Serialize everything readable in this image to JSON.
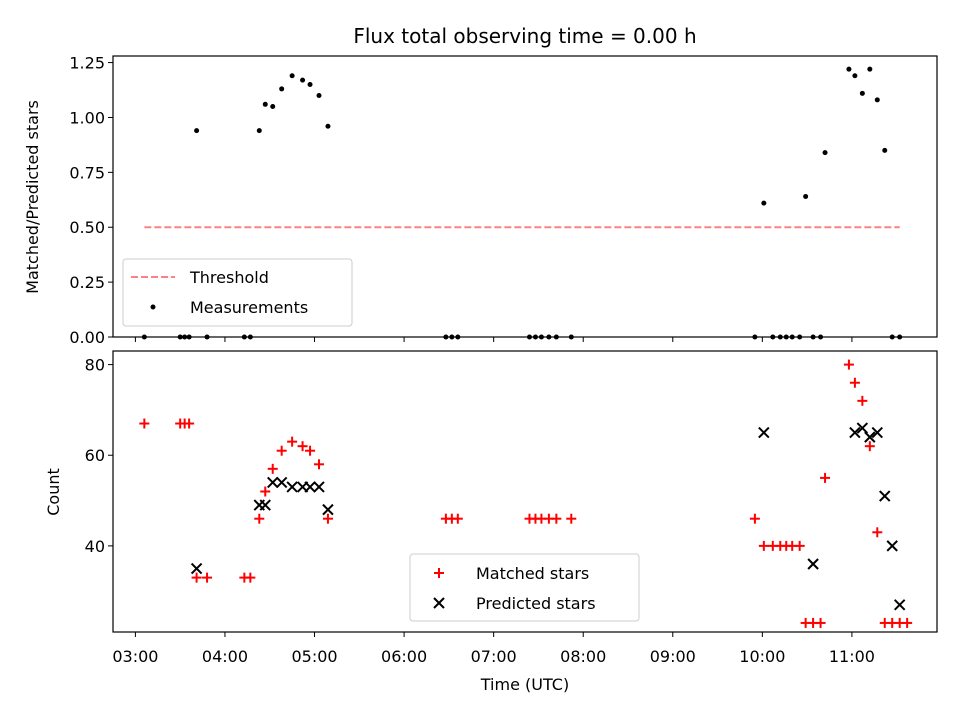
{
  "chart_data": [
    {
      "type": "scatter",
      "title": "Flux total observing time = 0.00 h",
      "xlabel": "",
      "ylabel": "Matched/Predicted stars",
      "xlim": [
        "02:45",
        "11:57"
      ],
      "ylim": [
        0,
        1.28
      ],
      "yticks": [
        "0.00",
        "0.25",
        "0.50",
        "0.75",
        "1.00",
        "1.25"
      ],
      "grid": false,
      "legend_position": "lower-left",
      "series": [
        {
          "name": "Threshold",
          "kind": "dashed-line",
          "color": "#ff8080",
          "x": [
            "03:06",
            "11:32"
          ],
          "y": [
            0.5,
            0.5
          ]
        },
        {
          "name": "Measurements",
          "kind": "scatter",
          "color": "#000000",
          "x": [
            "03:06",
            "03:30",
            "03:33",
            "03:36",
            "03:41",
            "03:48",
            "04:13",
            "04:17",
            "04:23",
            "04:27",
            "04:32",
            "04:38",
            "04:45",
            "04:52",
            "04:57",
            "05:03",
            "05:09",
            "06:28",
            "06:32",
            "06:36",
            "07:24",
            "07:28",
            "07:32",
            "07:37",
            "07:42",
            "07:52",
            "09:55",
            "10:01",
            "10:07",
            "10:12",
            "10:16",
            "10:20",
            "10:25",
            "10:29",
            "10:34",
            "10:39",
            "10:42",
            "10:58",
            "11:02",
            "11:07",
            "11:12",
            "11:17",
            "11:22",
            "11:27",
            "11:32"
          ],
          "y": [
            0,
            0,
            0,
            0,
            0.94,
            0,
            0,
            0,
            0.94,
            1.06,
            1.05,
            1.13,
            1.19,
            1.17,
            1.15,
            1.1,
            0.96,
            0,
            0,
            0,
            0,
            0,
            0,
            0,
            0,
            0,
            0,
            0.61,
            0,
            0,
            0,
            0,
            0,
            0.64,
            0,
            0,
            0.84,
            1.22,
            1.19,
            1.11,
            1.22,
            1.08,
            0.85,
            0,
            0
          ]
        }
      ]
    },
    {
      "type": "scatter",
      "title": "",
      "xlabel": "Time (UTC)",
      "ylabel": "Count",
      "xlim": [
        "02:45",
        "11:57"
      ],
      "ylim": [
        21,
        83
      ],
      "yticks": [
        "40",
        "60",
        "80"
      ],
      "xticks": [
        "03:00",
        "04:00",
        "05:00",
        "06:00",
        "07:00",
        "08:00",
        "09:00",
        "10:00",
        "11:00"
      ],
      "grid": false,
      "legend_position": "bottom-center",
      "series": [
        {
          "name": "Matched stars",
          "kind": "plus",
          "color": "#ff0000",
          "x": [
            "03:06",
            "03:30",
            "03:33",
            "03:36",
            "03:41",
            "03:48",
            "04:13",
            "04:17",
            "04:23",
            "04:27",
            "04:32",
            "04:38",
            "04:45",
            "04:52",
            "04:57",
            "05:03",
            "05:09",
            "06:28",
            "06:32",
            "06:36",
            "07:24",
            "07:28",
            "07:32",
            "07:37",
            "07:42",
            "07:52",
            "09:55",
            "10:01",
            "10:07",
            "10:12",
            "10:16",
            "10:20",
            "10:25",
            "10:29",
            "10:34",
            "10:39",
            "10:42",
            "10:58",
            "11:02",
            "11:07",
            "11:12",
            "11:17",
            "11:22",
            "11:27",
            "11:32",
            "11:37"
          ],
          "y": [
            67,
            67,
            67,
            67,
            33,
            33,
            33,
            33,
            46,
            52,
            57,
            61,
            63,
            62,
            61,
            58,
            46,
            46,
            46,
            46,
            46,
            46,
            46,
            46,
            46,
            46,
            46,
            40,
            40,
            40,
            40,
            40,
            40,
            23,
            23,
            23,
            55,
            80,
            76,
            72,
            62,
            43,
            23,
            23,
            23,
            23
          ]
        },
        {
          "name": "Predicted stars",
          "kind": "x",
          "color": "#000000",
          "x": [
            "03:41",
            "04:23",
            "04:27",
            "04:32",
            "04:38",
            "04:45",
            "04:52",
            "04:57",
            "05:03",
            "05:09",
            "10:01",
            "10:34",
            "11:02",
            "11:07",
            "11:12",
            "11:17",
            "11:22",
            "11:27",
            "11:32"
          ],
          "y": [
            35,
            49,
            49,
            54,
            54,
            53,
            53,
            53,
            53,
            48,
            65,
            36,
            65,
            66,
            64,
            65,
            51,
            40,
            27
          ]
        }
      ]
    }
  ]
}
